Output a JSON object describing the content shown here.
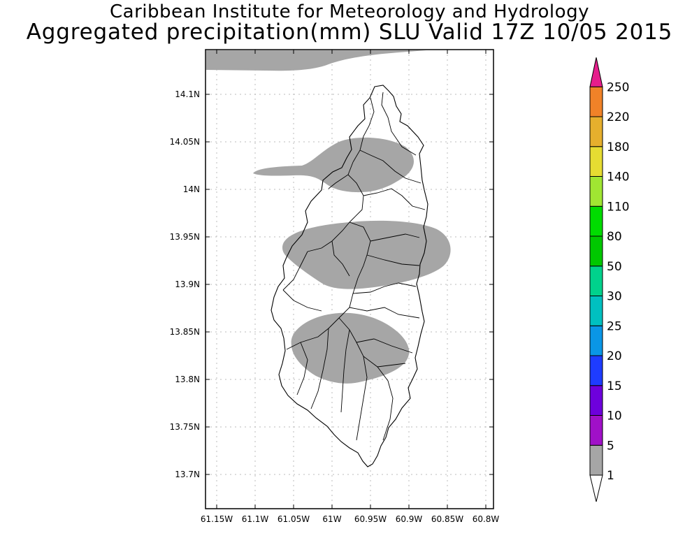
{
  "titles": {
    "line1": "Caribbean Institute for Meteorology and Hydrology",
    "line2": "Aggregated precipitation(mm) SLU Valid 17Z 10/05 2015"
  },
  "map": {
    "lon_ticks": [
      "61.15W",
      "61.1W",
      "61.05W",
      "61W",
      "60.95W",
      "60.9W",
      "60.85W",
      "60.8W"
    ],
    "lat_ticks": [
      "14.1N",
      "14.05N",
      "14N",
      "13.95N",
      "13.9N",
      "13.85N",
      "13.8N",
      "13.75N",
      "13.7N"
    ],
    "gridlines": true,
    "shaded_color": "#a6a6a6"
  },
  "colorbar": {
    "labels": [
      "1",
      "5",
      "10",
      "15",
      "20",
      "25",
      "30",
      "50",
      "80",
      "110",
      "140",
      "180",
      "220",
      "250"
    ],
    "colors": [
      "#a6a6a6",
      "#a010c8",
      "#6e00dc",
      "#1e3cff",
      "#0a96e6",
      "#00c0c0",
      "#00d28c",
      "#00c800",
      "#00dc00",
      "#a0e632",
      "#e6dc32",
      "#e6af2d",
      "#f08228",
      "#fa3c3c",
      "#e61e8c"
    ]
  }
}
